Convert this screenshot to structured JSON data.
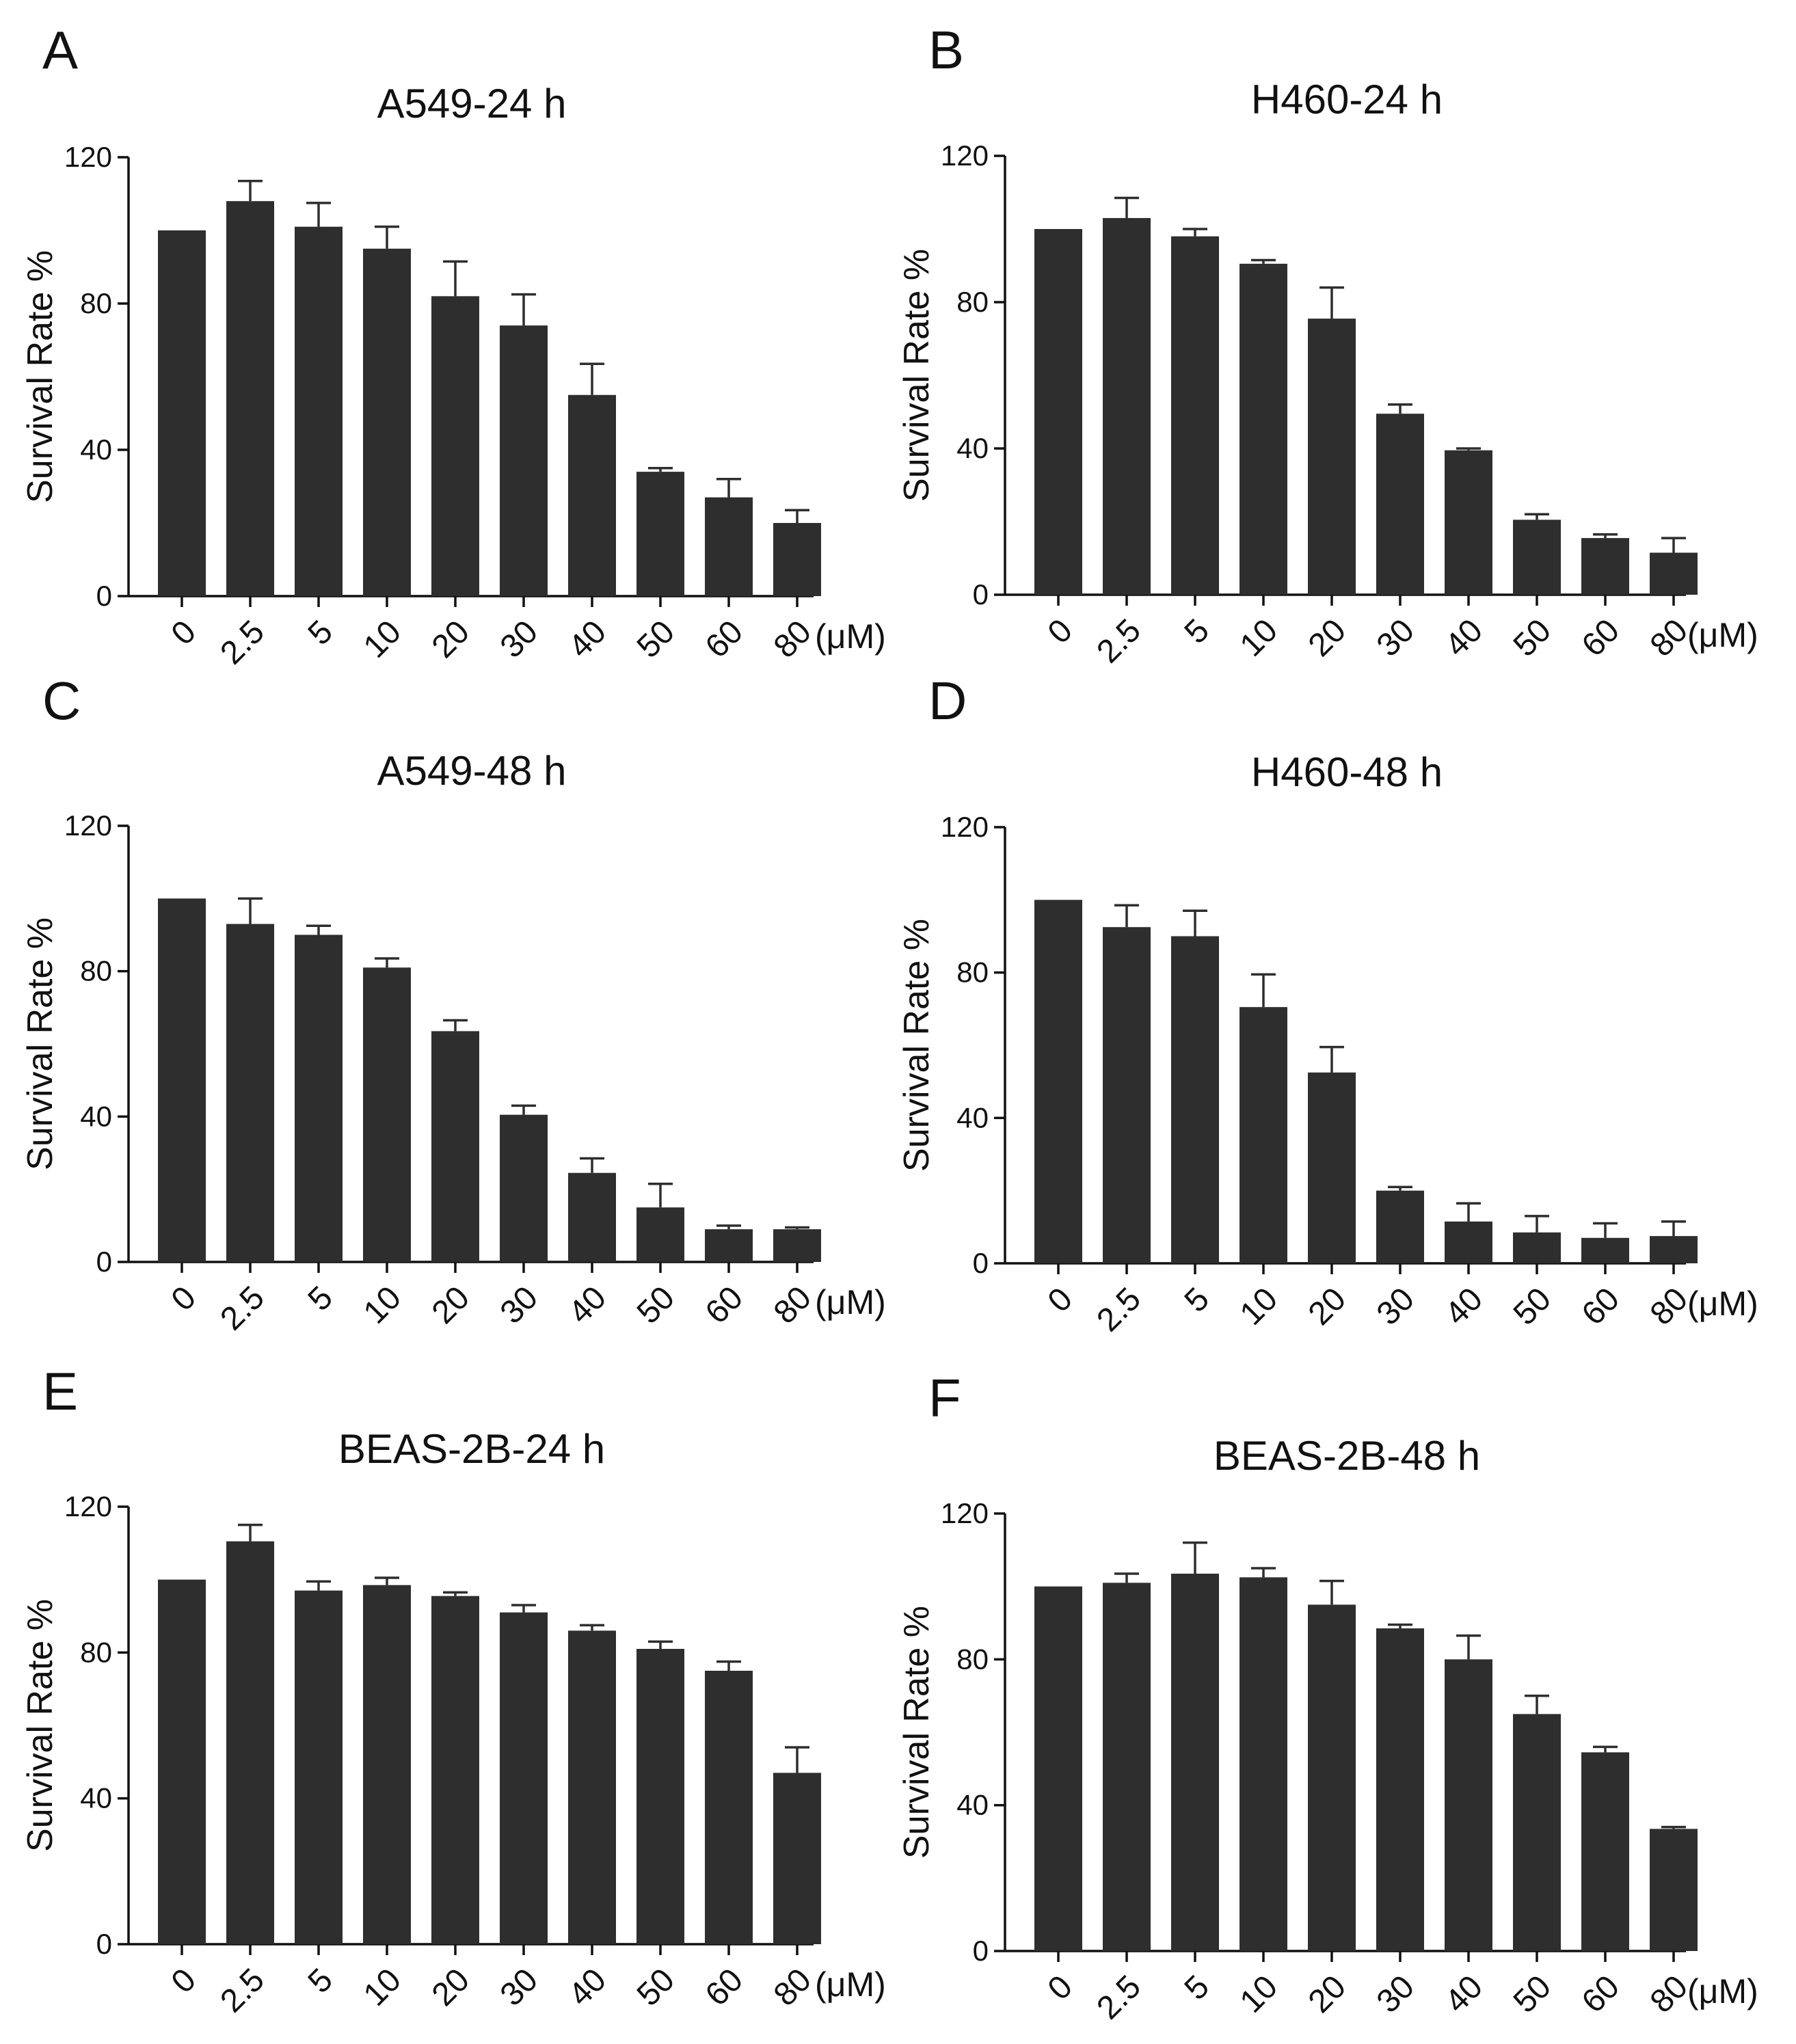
{
  "figure": {
    "y_axis_label": "Survival Rate %",
    "x_unit_label": "(μM)"
  },
  "chart_data": [
    {
      "panel": "A",
      "type": "bar",
      "title": "A549-24 h",
      "xlabel": "(μM)",
      "ylabel": "Survival Rate %",
      "ylim": [
        0,
        120
      ],
      "yticks": [
        0,
        40,
        80,
        120
      ],
      "categories": [
        "0",
        "2.5",
        "5",
        "10",
        "20",
        "30",
        "40",
        "50",
        "60",
        "80"
      ],
      "values": [
        100,
        108,
        101,
        95,
        82,
        74,
        55,
        34,
        27,
        20
      ],
      "errors": [
        0,
        5.5,
        6.5,
        6,
        9.5,
        8.5,
        8.5,
        1,
        5,
        3.5
      ]
    },
    {
      "panel": "B",
      "type": "bar",
      "title": "H460-24 h",
      "xlabel": "(μM)",
      "ylabel": "Survival Rate %",
      "ylim": [
        0,
        120
      ],
      "yticks": [
        0,
        40,
        80,
        120
      ],
      "categories": [
        "0",
        "2.5",
        "5",
        "10",
        "20",
        "30",
        "40",
        "50",
        "60",
        "80"
      ],
      "values": [
        100,
        103,
        98,
        90.5,
        75.5,
        49.5,
        39.5,
        20.5,
        15.5,
        11.5
      ],
      "errors": [
        0,
        5.5,
        2,
        1,
        8.5,
        2.5,
        0.5,
        1.5,
        1,
        4
      ]
    },
    {
      "panel": "C",
      "type": "bar",
      "title": "A549-48 h",
      "xlabel": "(μM)",
      "ylabel": "Survival Rate %",
      "ylim": [
        0,
        120
      ],
      "yticks": [
        0,
        40,
        80,
        120
      ],
      "categories": [
        "0",
        "2.5",
        "5",
        "10",
        "20",
        "30",
        "40",
        "50",
        "60",
        "80"
      ],
      "values": [
        100,
        93,
        90,
        81,
        63.5,
        40.5,
        24.5,
        15,
        9,
        9
      ],
      "errors": [
        0,
        7,
        2.5,
        2.5,
        3,
        2.5,
        4,
        6.5,
        1,
        0.5
      ]
    },
    {
      "panel": "D",
      "type": "bar",
      "title": "H460-48 h",
      "xlabel": "(μM)",
      "ylabel": "Survival Rate %",
      "ylim": [
        0,
        120
      ],
      "yticks": [
        0,
        40,
        80,
        120
      ],
      "categories": [
        "0",
        "2.5",
        "5",
        "10",
        "20",
        "30",
        "40",
        "50",
        "60",
        "80"
      ],
      "values": [
        100,
        92.5,
        90,
        70.5,
        52.5,
        20,
        11.5,
        8.5,
        7,
        7.5
      ],
      "errors": [
        0,
        6,
        7,
        9,
        7,
        1,
        5,
        4.5,
        4,
        4
      ]
    },
    {
      "panel": "E",
      "type": "bar",
      "title": "BEAS-2B-24 h",
      "xlabel": "(μM)",
      "ylabel": "Survival Rate %",
      "ylim": [
        0,
        120
      ],
      "yticks": [
        0,
        40,
        80,
        120
      ],
      "categories": [
        "0",
        "2.5",
        "5",
        "10",
        "20",
        "30",
        "40",
        "50",
        "60",
        "80"
      ],
      "values": [
        100,
        110.5,
        97,
        98.5,
        95.5,
        91,
        86,
        81,
        75,
        47
      ],
      "errors": [
        0,
        4.5,
        2.5,
        2,
        1,
        2,
        1.5,
        2,
        2.5,
        7
      ]
    },
    {
      "panel": "F",
      "type": "bar",
      "title": "BEAS-2B-48 h",
      "xlabel": "(μM)",
      "ylabel": "Survival Rate %",
      "ylim": [
        0,
        120
      ],
      "yticks": [
        0,
        40,
        80,
        120
      ],
      "categories": [
        "0",
        "2.5",
        "5",
        "10",
        "20",
        "30",
        "40",
        "50",
        "60",
        "80"
      ],
      "values": [
        100,
        101,
        103.5,
        102.5,
        95,
        88.5,
        80,
        65,
        54.5,
        33.5
      ],
      "errors": [
        0,
        2.5,
        8.5,
        2.5,
        6.5,
        1,
        6.5,
        5,
        1.5,
        0.5
      ]
    }
  ]
}
